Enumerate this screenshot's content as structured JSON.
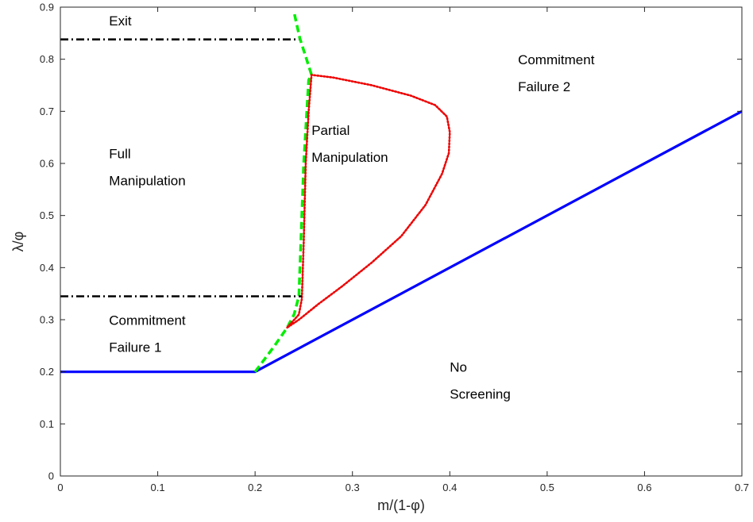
{
  "chart_data": {
    "type": "line",
    "xlabel": "m/(1-φ)",
    "ylabel": "λ/φ",
    "xlim": [
      0,
      0.7
    ],
    "ylim": [
      0,
      0.9
    ],
    "x_ticks": [
      "0",
      "0.1",
      "0.2",
      "0.3",
      "0.4",
      "0.5",
      "0.6",
      "0.7"
    ],
    "y_ticks": [
      "0",
      "0.1",
      "0.2",
      "0.3",
      "0.4",
      "0.5",
      "0.6",
      "0.7",
      "0.8",
      "0.9"
    ],
    "grid": false,
    "series": [
      {
        "style": "solid",
        "color": "#0000ff",
        "x": [
          0,
          0.2,
          0.7
        ],
        "y": [
          0.2,
          0.2,
          0.7
        ]
      },
      {
        "style": "dashed",
        "color": "#00ee00",
        "x": [
          0.2,
          0.21,
          0.22,
          0.233,
          0.24,
          0.245,
          0.25,
          0.255,
          0.258,
          0.252,
          0.246,
          0.24
        ],
        "y": [
          0.2,
          0.225,
          0.25,
          0.285,
          0.31,
          0.345,
          0.6,
          0.76,
          0.77,
          0.805,
          0.84,
          0.89
        ]
      },
      {
        "style": "dotted",
        "color": "#ee0000",
        "x": [
          0.233,
          0.245,
          0.248,
          0.25,
          0.252,
          0.255,
          0.258,
          0.28,
          0.32,
          0.36,
          0.385,
          0.397,
          0.4,
          0.399,
          0.392,
          0.375,
          0.35,
          0.32,
          0.29,
          0.265,
          0.245,
          0.233
        ],
        "y": [
          0.285,
          0.31,
          0.34,
          0.45,
          0.6,
          0.7,
          0.77,
          0.765,
          0.75,
          0.73,
          0.712,
          0.69,
          0.66,
          0.62,
          0.58,
          0.52,
          0.46,
          0.41,
          0.365,
          0.33,
          0.3,
          0.285
        ]
      },
      {
        "style": "dash-dot",
        "color": "#000000",
        "x": [
          0,
          0.245
        ],
        "y": [
          0.838,
          0.838
        ]
      },
      {
        "style": "dash-dot",
        "color": "#000000",
        "x": [
          0,
          0.248
        ],
        "y": [
          0.345,
          0.345
        ]
      }
    ],
    "annotations": [
      {
        "lines": [
          "Exit"
        ],
        "x": 0.05,
        "y": 0.865
      },
      {
        "lines": [
          "Full",
          "Manipulation"
        ],
        "x": 0.05,
        "y": 0.61
      },
      {
        "lines": [
          "Partial",
          "Manipulation"
        ],
        "x": 0.258,
        "y": 0.655
      },
      {
        "lines": [
          "Commitment",
          "Failure 2"
        ],
        "x": 0.47,
        "y": 0.79
      },
      {
        "lines": [
          "Commitment",
          "Failure 1"
        ],
        "x": 0.05,
        "y": 0.29
      },
      {
        "lines": [
          "No",
          "Screening"
        ],
        "x": 0.4,
        "y": 0.2
      }
    ]
  }
}
